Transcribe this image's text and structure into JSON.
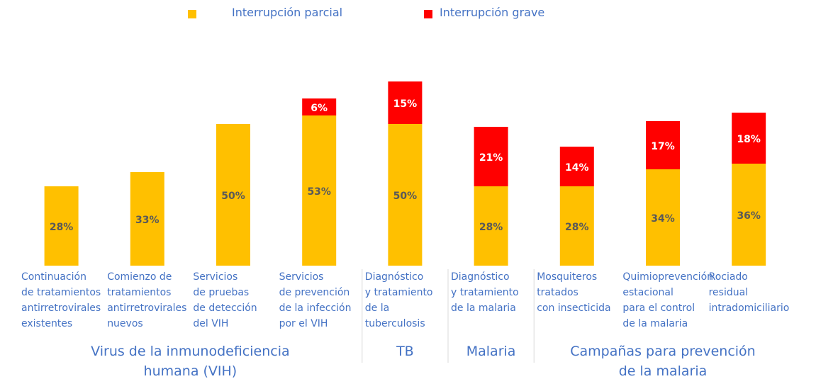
{
  "chart_data": {
    "type": "stacked_bar",
    "groups": [
      {
        "label": "Virus de la inmunodeficiencia\nhumana (VIH)",
        "categories": [
          "Continuación\nde tratamientos\nantirretrovirales\nexistentes",
          "Comienzo de\ntratamientos\nantirretrovirales\nnuevos",
          "Servicios\nde pruebas\nde detección\ndel VIH",
          "Servicios\nde prevención\nde la infección\npor el VIH"
        ]
      },
      {
        "label": "TB",
        "categories": [
          "Diagnóstico\ny tratamiento\nde la\ntuberculosis"
        ]
      },
      {
        "label": "Malaria",
        "categories": [
          "Diagnóstico\ny tratamiento\nde la malaria"
        ]
      },
      {
        "label": "Campañas para prevención\nde la malaria",
        "categories": [
          "Mosquiteros\ntratados\ncon insecticida",
          "Quimioprevención\nestacional\npara el control\nde la malaria",
          "Rociado\nresidual\nintradomiciliario"
        ]
      }
    ],
    "series": [
      {
        "name": "Interrupción parcial",
        "color": "#FFC000",
        "values": [
          28,
          33,
          50,
          53,
          50,
          28,
          28,
          34,
          36
        ],
        "value_labels": [
          "28%",
          "33%",
          "50%",
          "53%",
          "50%",
          "28%",
          "28%",
          "34%",
          "36%"
        ]
      },
      {
        "name": "Interrupción grave",
        "color": "#FF0000",
        "values": [
          null,
          null,
          null,
          6,
          15,
          21,
          14,
          17,
          18
        ],
        "value_labels": [
          null,
          null,
          null,
          "6%",
          "15%",
          "21%",
          "14%",
          "17%",
          "18%"
        ]
      }
    ],
    "ylim": [
      0,
      70
    ],
    "legend": "top"
  }
}
